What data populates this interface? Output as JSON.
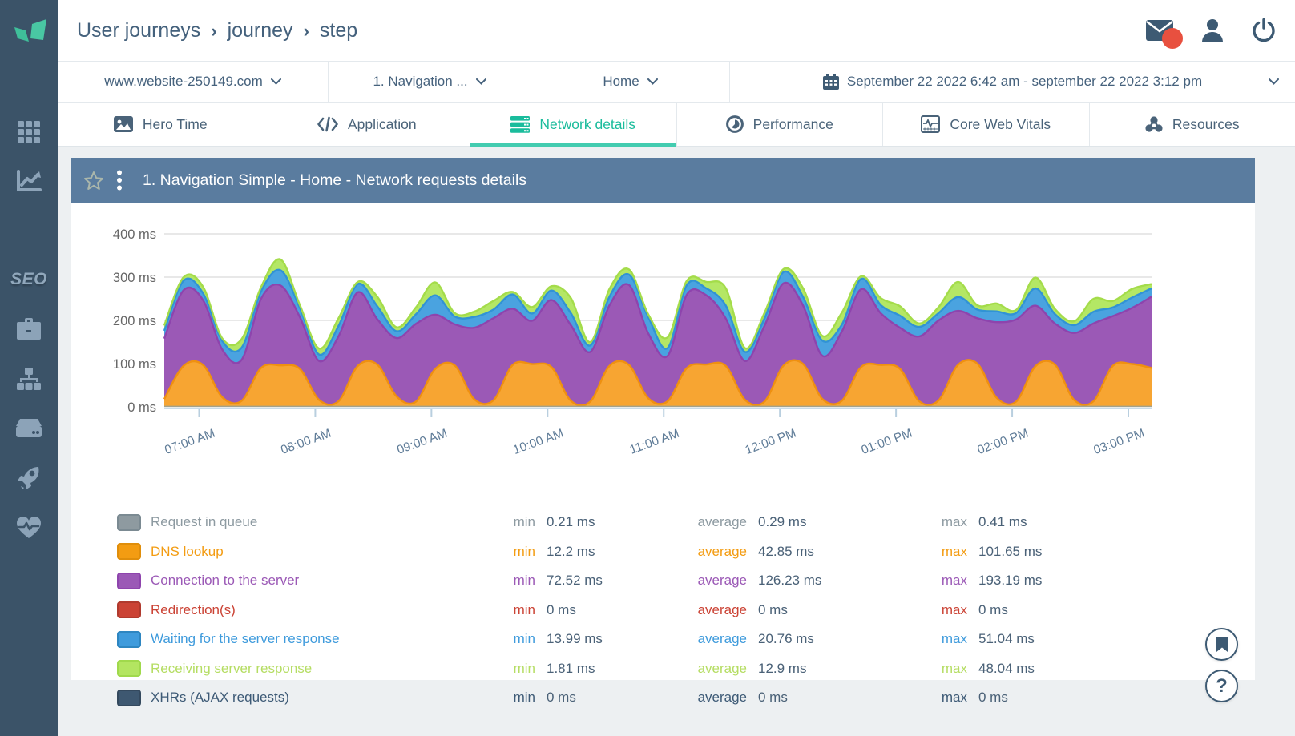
{
  "breadcrumb": {
    "items": [
      "User journeys",
      "journey",
      "step"
    ],
    "separator": "›"
  },
  "topbar": {
    "icons": [
      "messages-icon",
      "user-icon",
      "power-icon"
    ],
    "notification_color": "#e8503f"
  },
  "filters": {
    "website": "www.website-250149.com",
    "journey": "1. Navigation ...",
    "step": "Home",
    "date_range": "September 22 2022 6:42 am - september 22 2022 3:12 pm"
  },
  "tabs": [
    {
      "label": "Hero Time",
      "icon": "image-icon",
      "active": false
    },
    {
      "label": "Application",
      "icon": "code-icon",
      "active": false
    },
    {
      "label": "Network details",
      "icon": "server-stack-icon",
      "active": true
    },
    {
      "label": "Performance",
      "icon": "performance-icon",
      "active": false
    },
    {
      "label": "Core Web Vitals",
      "icon": "waveform-icon",
      "active": false
    },
    {
      "label": "Resources",
      "icon": "share-nodes-icon",
      "active": false
    }
  ],
  "sidebar": {
    "seo_label": "SEO",
    "items": [
      "apps-grid-icon",
      "chart-line-icon",
      "seo-label",
      "briefcase-icon",
      "sitemap-icon",
      "server-icon",
      "rocket-icon",
      "heart-pulse-icon"
    ]
  },
  "panel": {
    "title": "1. Navigation Simple - Home - Network requests details",
    "header_color": "#5a7c9f",
    "accent_color": "#1abc9c"
  },
  "legend_keys": {
    "min": "min",
    "average": "average",
    "max": "max"
  },
  "chart_data": {
    "type": "area",
    "stacked": true,
    "title": "1. Navigation Simple - Home - Network requests details",
    "ylabel": "ms",
    "ylim": [
      0,
      400
    ],
    "y_ticks": [
      "400 ms",
      "300 ms",
      "200 ms",
      "100 ms",
      "0 ms"
    ],
    "x_start_min": 402,
    "x_end_min": 912,
    "x_ticks": [
      {
        "label": "07:00 AM",
        "minute": 420
      },
      {
        "label": "08:00 AM",
        "minute": 480
      },
      {
        "label": "09:00 AM",
        "minute": 540
      },
      {
        "label": "10:00 AM",
        "minute": 600
      },
      {
        "label": "11:00 AM",
        "minute": 660
      },
      {
        "label": "12:00 PM",
        "minute": 720
      },
      {
        "label": "01:00 PM",
        "minute": 780
      },
      {
        "label": "02:00 PM",
        "minute": 840
      },
      {
        "label": "03:00 PM",
        "minute": 900
      }
    ],
    "grid": true,
    "legend_position": "bottom",
    "series": [
      {
        "name": "Request in queue",
        "color": "#8e9aa0",
        "border": "#7b8a92",
        "label_color": "#8d9aa1",
        "min": "0.21 ms",
        "average": "0.29 ms",
        "max": "0.41 ms",
        "values": null
      },
      {
        "name": "DNS lookup",
        "color": "#f39c12",
        "border": "#e08e0b",
        "label_color": "#f39c12",
        "fill": "#f7a532",
        "stroke": "#ef9010",
        "min": "12.2 ms",
        "average": "42.85 ms",
        "max": "101.65 ms",
        "values": [
          18,
          95,
          97,
          22,
          14,
          90,
          96,
          88,
          16,
          13,
          95,
          98,
          24,
          12,
          88,
          96,
          18,
          15,
          97,
          99,
          92,
          14,
          12,
          95,
          97,
          20,
          13,
          90,
          98,
          95,
          16,
          12,
          96,
          99,
          18,
          14,
          92,
          97,
          88,
          13,
          15,
          97,
          100,
          21,
          12,
          94,
          98,
          16,
          13,
          95,
          99,
          90
        ]
      },
      {
        "name": "Connection to the server",
        "color": "#9b59b6",
        "border": "#8e44ad",
        "label_color": "#9b59b6",
        "fill": "#9b59b6",
        "stroke": "#8e44ad",
        "min": "72.52 ms",
        "average": "126.23 ms",
        "max": "193.19 ms",
        "values": [
          140,
          175,
          150,
          110,
          95,
          160,
          185,
          120,
          90,
          150,
          170,
          105,
          135,
          180,
          125,
          95,
          165,
          190,
          130,
          100,
          155,
          175,
          115,
          140,
          185,
          150,
          105,
          170,
          160,
          110,
          90,
          175,
          190,
          135,
          100,
          160,
          180,
          120,
          95,
          150,
          185,
          125,
          105,
          175,
          190,
          140,
          95,
          155,
          180,
          115,
          130,
          165
        ]
      },
      {
        "name": "Redirection(s)",
        "color": "#cb4335",
        "border": "#b03a2e",
        "label_color": "#cb4335",
        "min": "0 ms",
        "average": "0 ms",
        "max": "0 ms",
        "values": null
      },
      {
        "name": "Waiting for the server response",
        "color": "#3f9bdc",
        "border": "#2e86c1",
        "label_color": "#3f9bdc",
        "fill": "#4aa3e0",
        "stroke": "#3193d5",
        "min": "13.99 ms",
        "average": "20.76 ms",
        "max": "51.04 ms",
        "values": [
          18,
          22,
          16,
          20,
          28,
          17,
          35,
          21,
          15,
          24,
          19,
          30,
          16,
          22,
          45,
          18,
          25,
          20,
          33,
          17,
          22,
          28,
          15,
          20,
          24,
          38,
          18,
          22,
          16,
          30,
          21,
          17,
          26,
          20,
          35,
          16,
          24,
          19,
          28,
          22,
          17,
          32,
          20,
          25,
          15,
          40,
          22,
          18,
          27,
          20,
          24,
          19
        ]
      },
      {
        "name": "Receiving server response",
        "color": "#b3e561",
        "border": "#a0d94c",
        "label_color": "#b5dd63",
        "fill": "#b4e765",
        "stroke": "#a4dc4a",
        "min": "1.81 ms",
        "average": "12.9 ms",
        "max": "48.04 ms",
        "values": [
          12,
          8,
          15,
          6,
          20,
          10,
          25,
          7,
          14,
          18,
          5,
          22,
          9,
          16,
          30,
          8,
          12,
          20,
          6,
          15,
          10,
          35,
          8,
          18,
          12,
          6,
          25,
          10,
          15,
          40,
          9,
          13,
          7,
          20,
          11,
          28,
          6,
          16,
          22,
          8,
          14,
          35,
          10,
          18,
          7,
          25,
          12,
          9,
          30,
          15,
          20,
          10
        ]
      },
      {
        "name": "XHRs (AJAX requests)",
        "color": "#3e5871",
        "border": "#34495e",
        "label_color": "#3d5a76",
        "min": "0 ms",
        "average": "0 ms",
        "max": "0 ms",
        "values": null
      }
    ]
  },
  "floating": {
    "bookmark": "bookmark-button",
    "help": "help-button"
  }
}
